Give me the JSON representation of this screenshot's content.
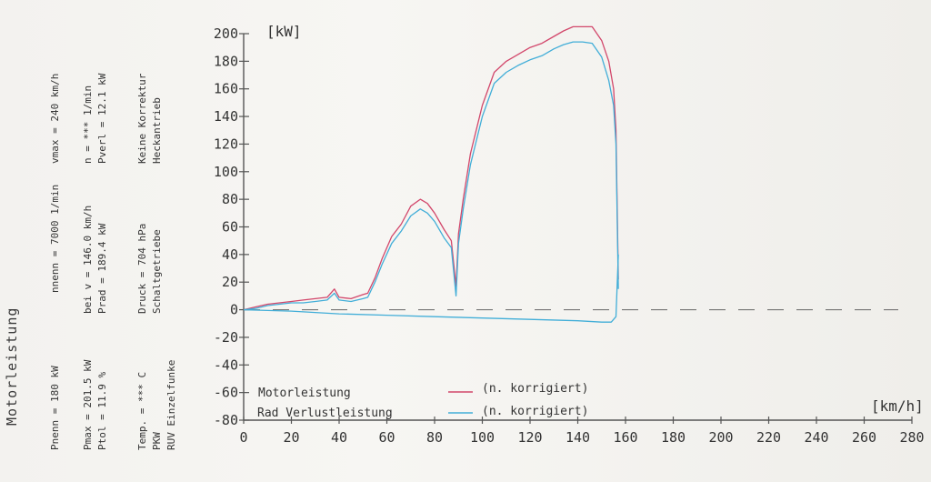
{
  "side_title": "Motorleistung",
  "params": {
    "col1": {
      "line1": "Pnenn =    180 kW",
      "line2": "Pmax  =  201.5 kW",
      "line3": "Ptol  =   11.9 %"
    },
    "col2": {
      "line1": "nnenn =  7000 1/min",
      "line2": "bei v = 146.0 km/h",
      "line3": "Prad  =  189.4 kW"
    },
    "col3": {
      "line1": "vmax  =   240 km/h",
      "line2": "n     =   *** 1/min",
      "line3": "Pverl =   12.1 kW"
    },
    "col4": {
      "line1": "Druck =  704  hPa",
      "line2": "Schaltgetriebe"
    },
    "col5": {
      "line1": "Keine Korrektur",
      "line2": "Heckantrieb"
    },
    "col6": {
      "line1": "Temp. =  ***  C",
      "line2": "PKW",
      "line3": "RUV  Einzelfunke"
    }
  },
  "colors": {
    "motor": "#d2476b",
    "rad": "#42aed8",
    "axis": "#555555"
  },
  "chart_data": {
    "type": "line",
    "ylabel": "[kW]",
    "xlabel": "[km/h]",
    "xlim": [
      0,
      280
    ],
    "ylim": [
      -80,
      200
    ],
    "xticks": [
      0,
      20,
      40,
      60,
      80,
      100,
      120,
      140,
      160,
      180,
      200,
      220,
      240,
      260,
      280
    ],
    "yticks": [
      -80,
      -60,
      -40,
      -20,
      0,
      20,
      40,
      60,
      80,
      100,
      120,
      140,
      160,
      180,
      200
    ],
    "legend": [
      {
        "name": "Motorleistung",
        "note": "(n. korrigiert)"
      },
      {
        "name": "Rad  Verlustleistung",
        "note": "(n. korrigiert)"
      }
    ],
    "series": [
      {
        "name": "Motorleistung",
        "x": [
          0,
          5,
          10,
          15,
          20,
          25,
          30,
          35,
          38,
          40,
          45,
          50,
          52,
          55,
          58,
          62,
          66,
          70,
          74,
          77,
          80,
          84,
          87,
          89,
          90,
          92,
          95,
          100,
          105,
          110,
          115,
          120,
          125,
          130,
          134,
          138,
          142,
          146,
          150,
          153,
          155,
          156,
          157
        ],
        "y": [
          0,
          2,
          4,
          5,
          6,
          7,
          8,
          9,
          15,
          9,
          8,
          11,
          12,
          23,
          37,
          53,
          62,
          75,
          80,
          77,
          70,
          58,
          50,
          17,
          55,
          80,
          113,
          148,
          172,
          180,
          185,
          190,
          193,
          198,
          202,
          205,
          205,
          205,
          195,
          180,
          160,
          130,
          22
        ]
      },
      {
        "name": "Rad  Verlustleistung",
        "x": [
          0,
          5,
          10,
          15,
          20,
          25,
          30,
          35,
          38,
          40,
          45,
          50,
          52,
          55,
          58,
          62,
          66,
          70,
          74,
          77,
          80,
          84,
          87,
          89,
          90,
          92,
          95,
          100,
          105,
          110,
          115,
          120,
          125,
          130,
          134,
          138,
          142,
          146,
          150,
          153,
          155,
          156,
          157
        ],
        "y": [
          0,
          1,
          3,
          4,
          5,
          5,
          6,
          7,
          12,
          7,
          6,
          8,
          9,
          20,
          33,
          48,
          57,
          68,
          73,
          70,
          64,
          52,
          45,
          10,
          48,
          73,
          105,
          140,
          164,
          172,
          177,
          181,
          184,
          189,
          192,
          194,
          194,
          193,
          183,
          166,
          148,
          120,
          15
        ]
      },
      {
        "name": "Verlust",
        "x": [
          0,
          20,
          40,
          60,
          80,
          100,
          120,
          140,
          150,
          154,
          156,
          157
        ],
        "y": [
          0,
          -1,
          -3,
          -4,
          -5,
          -6,
          -7,
          -8,
          -9,
          -9,
          -5,
          40
        ]
      }
    ]
  }
}
